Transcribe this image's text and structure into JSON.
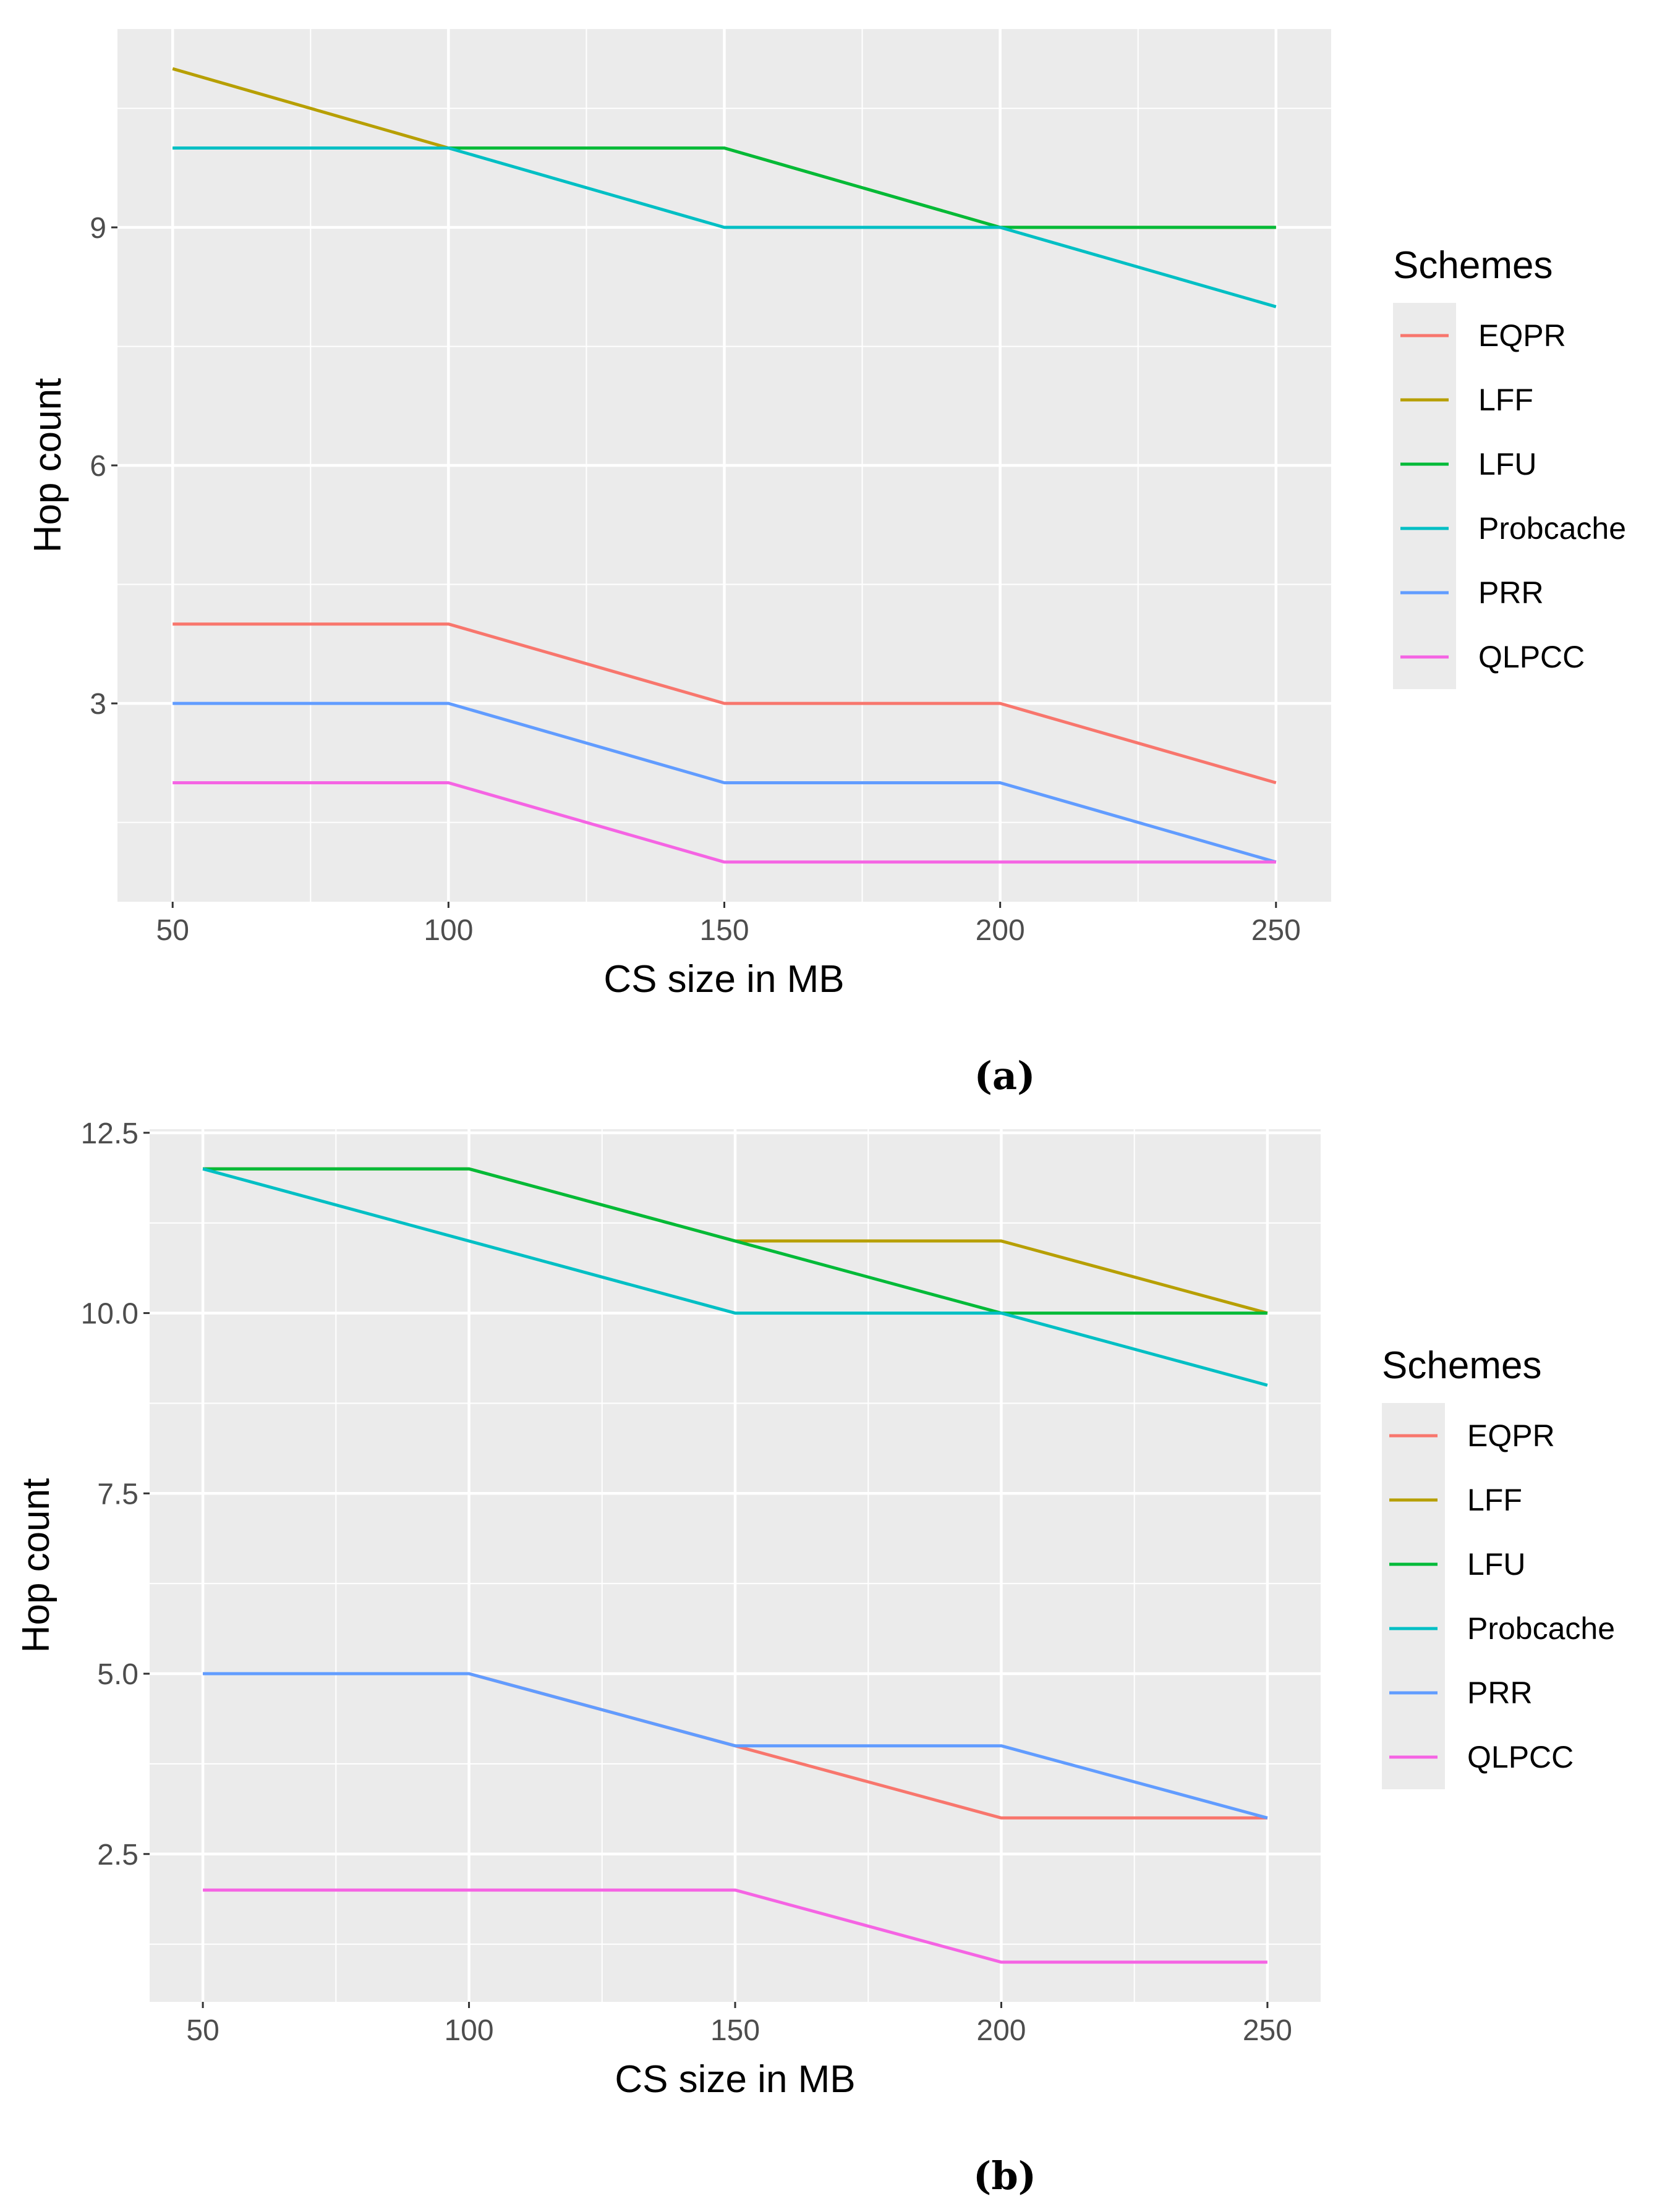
{
  "chart_data": [
    {
      "type": "line",
      "panel": "a",
      "caption": "(a)",
      "xlabel": "CS size in MB",
      "ylabel": "Hop count",
      "x": [
        50,
        100,
        150,
        200,
        250
      ],
      "xticks": [
        "50",
        "100",
        "150",
        "200",
        "250"
      ],
      "yticks": [
        3,
        6,
        9
      ],
      "ytick_labels": [
        "3",
        "6",
        "9"
      ],
      "xlim": [
        40,
        260
      ],
      "ylim": [
        0.5,
        11.5
      ],
      "grid": true,
      "legend": {
        "title": "Schemes",
        "position": "right"
      },
      "series": [
        {
          "name": "EQPR",
          "color": "#F8766D",
          "values": [
            4,
            4,
            3,
            3,
            2
          ]
        },
        {
          "name": "LFF",
          "color": "#B79F00",
          "values": [
            11,
            10,
            10,
            9,
            9
          ]
        },
        {
          "name": "LFU",
          "color": "#00BA38",
          "values": [
            10,
            10,
            10,
            9,
            9
          ]
        },
        {
          "name": "Probcache",
          "color": "#00BFC4",
          "values": [
            10,
            10,
            9,
            9,
            8
          ]
        },
        {
          "name": "PRR",
          "color": "#619CFF",
          "values": [
            3,
            3,
            2,
            2,
            1
          ]
        },
        {
          "name": "QLPCC",
          "color": "#F564E3",
          "values": [
            2,
            2,
            1,
            1,
            1
          ]
        }
      ]
    },
    {
      "type": "line",
      "panel": "b",
      "caption": "(b)",
      "xlabel": "CS size in MB",
      "ylabel": "Hop count",
      "x": [
        50,
        100,
        150,
        200,
        250
      ],
      "xticks": [
        "50",
        "100",
        "150",
        "200",
        "250"
      ],
      "yticks": [
        2.5,
        5,
        7.5,
        10,
        12.5
      ],
      "ytick_labels": [
        "2.5",
        "5.0",
        "7.5",
        "10.0",
        "12.5"
      ],
      "xlim": [
        40,
        260
      ],
      "ylim": [
        0.45,
        12.55
      ],
      "grid": true,
      "legend": {
        "title": "Schemes",
        "position": "right"
      },
      "series": [
        {
          "name": "EQPR",
          "color": "#F8766D",
          "values": [
            5,
            5,
            4,
            3,
            3
          ]
        },
        {
          "name": "LFF",
          "color": "#B79F00",
          "values": [
            12,
            12,
            11,
            11,
            10
          ]
        },
        {
          "name": "LFU",
          "color": "#00BA38",
          "values": [
            12,
            12,
            11,
            10,
            10
          ]
        },
        {
          "name": "Probcache",
          "color": "#00BFC4",
          "values": [
            12,
            11,
            10,
            10,
            9
          ]
        },
        {
          "name": "PRR",
          "color": "#619CFF",
          "values": [
            5,
            5,
            4,
            4,
            3
          ]
        },
        {
          "name": "QLPCC",
          "color": "#F564E3",
          "values": [
            2,
            2,
            2,
            1,
            1
          ]
        }
      ]
    }
  ]
}
